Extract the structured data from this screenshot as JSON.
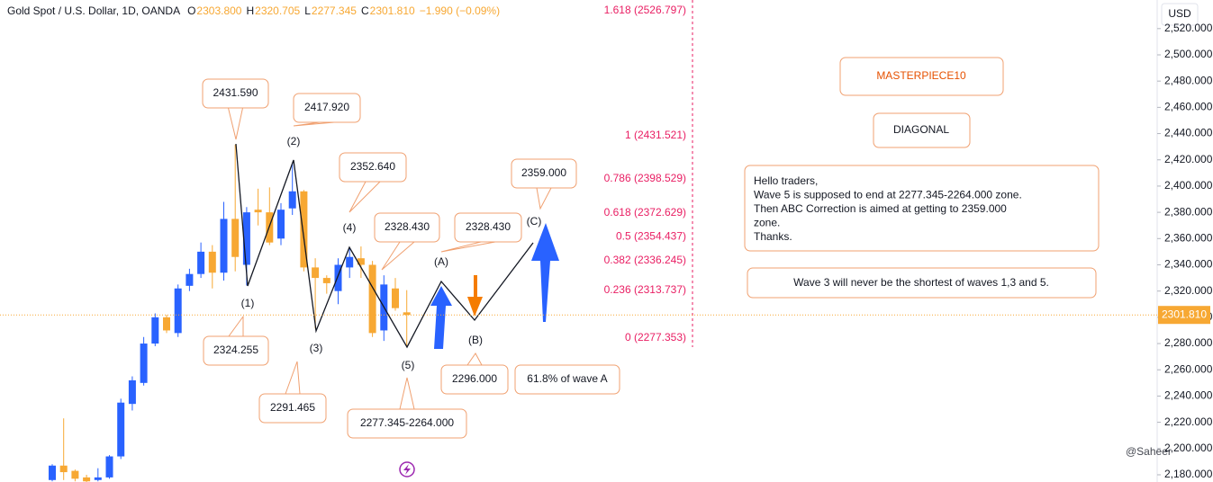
{
  "chart_data": {
    "type": "candlestick",
    "title": "Gold Spot / U.S. Dollar, 1D, OANDA",
    "ohlc_header": [
      {
        "label": "O",
        "text": "2303.800"
      },
      {
        "label": "H",
        "text": "2320.705"
      },
      {
        "label": "L",
        "text": "2277.345"
      },
      {
        "label": "C",
        "text": "2301.810"
      }
    ],
    "change": "−1.990 (−0.09%)",
    "currency": "USD",
    "up_color": "#2962ff",
    "down_color": "#f7a833",
    "open": [
      2176,
      2187,
      2183,
      2178,
      2176,
      2178,
      2194,
      2234,
      2250,
      2280,
      2300,
      2288,
      2324,
      2333,
      2350,
      2334,
      2375,
      2340,
      2382,
      2380,
      2360,
      2383,
      2396,
      2338,
      2330,
      2320,
      2338,
      2345,
      2340,
      2290,
      2322,
      2303.8
    ],
    "high": [
      2188,
      2223,
      2184,
      2180,
      2185,
      2195,
      2238,
      2255,
      2285,
      2303,
      2302,
      2325,
      2337,
      2357,
      2355,
      2388,
      2431.59,
      2384,
      2398,
      2399,
      2387,
      2417.92,
      2397,
      2345,
      2332,
      2345,
      2352.64,
      2354,
      2343,
      2332,
      2330,
      2320.705
    ],
    "low": [
      2175,
      2176,
      2175,
      2174,
      2175,
      2177,
      2192,
      2229,
      2248,
      2278,
      2288,
      2285,
      2320,
      2330,
      2322,
      2328,
      2335,
      2324.255,
      2370,
      2355,
      2355,
      2378,
      2335,
      2291.465,
      2318,
      2310,
      2330,
      2330,
      2285,
      2282,
      2305,
      2277.345
    ],
    "close": [
      2187,
      2182,
      2177,
      2175,
      2178,
      2194,
      2235,
      2252,
      2280,
      2300,
      2290,
      2322,
      2333,
      2350,
      2334,
      2375,
      2346,
      2380,
      2380,
      2357,
      2382,
      2396,
      2338,
      2330,
      2326,
      2340,
      2346,
      2340,
      2288,
      2325,
      2307,
      2301.81
    ],
    "ylim": [
      2174.5,
      2541.8
    ],
    "yticks": [
      {
        "value": 2180,
        "label": "2,180.000"
      },
      {
        "value": 2200,
        "label": "2,200.000"
      },
      {
        "value": 2220,
        "label": "2,220.000"
      },
      {
        "value": 2240,
        "label": "2,240.000"
      },
      {
        "value": 2260,
        "label": "2,260.000"
      },
      {
        "value": 2280,
        "label": "2,280.000"
      },
      {
        "value": 2300,
        "label": "2,300.000"
      },
      {
        "value": 2320,
        "label": "2,320.000"
      },
      {
        "value": 2340,
        "label": "2,340.000"
      },
      {
        "value": 2360,
        "label": "2,360.000"
      },
      {
        "value": 2380,
        "label": "2,380.000"
      },
      {
        "value": 2400,
        "label": "2,400.000"
      },
      {
        "value": 2420,
        "label": "2,420.000"
      },
      {
        "value": 2440,
        "label": "2,440.000"
      },
      {
        "value": 2460,
        "label": "2,460.000"
      },
      {
        "value": 2480,
        "label": "2,480.000"
      },
      {
        "value": 2500,
        "label": "2,500.000"
      },
      {
        "value": 2520,
        "label": "2,520.000"
      }
    ],
    "last_price": {
      "value": 2301.81,
      "label": "2301.810"
    },
    "fib_levels": [
      {
        "value": 2526.797,
        "label": "1.618 (2526.797)"
      },
      {
        "value": 2431.521,
        "label": "1 (2431.521)"
      },
      {
        "value": 2398.529,
        "label": "0.786 (2398.529)"
      },
      {
        "value": 2372.629,
        "label": "0.618 (2372.629)"
      },
      {
        "value": 2354.437,
        "label": "0.5 (2354.437)"
      },
      {
        "value": 2336.245,
        "label": "0.382 (2336.245)"
      },
      {
        "value": 2313.737,
        "label": "0.236 (2313.737)"
      },
      {
        "value": 2277.353,
        "label": "0 (2277.353)"
      }
    ],
    "wave_labels": [
      "(1)",
      "(2)",
      "(3)",
      "(4)",
      "(5)",
      "(A)",
      "(B)",
      "(C)"
    ],
    "callouts": [
      "2431.590",
      "2417.920",
      "2352.640",
      "2328.430",
      "2328.430",
      "2359.000",
      "2324.255",
      "2291.465",
      "2277.345-2264.000",
      "2296.000",
      "61.8% of wave A"
    ],
    "heading": "MASTERPIECE10",
    "subheading": "DIAGONAL",
    "notes": [
      "Hello traders,",
      "Wave 5 is supposed to end at 2277.345-2264.000 zone.",
      "Then ABC Correction is aimed at getting to 2359.000",
      "zone.",
      "Thanks."
    ],
    "rule_note": "Wave 3 will never be the shortest of waves 1,3 and 5.",
    "watermark": "@Saheer"
  }
}
